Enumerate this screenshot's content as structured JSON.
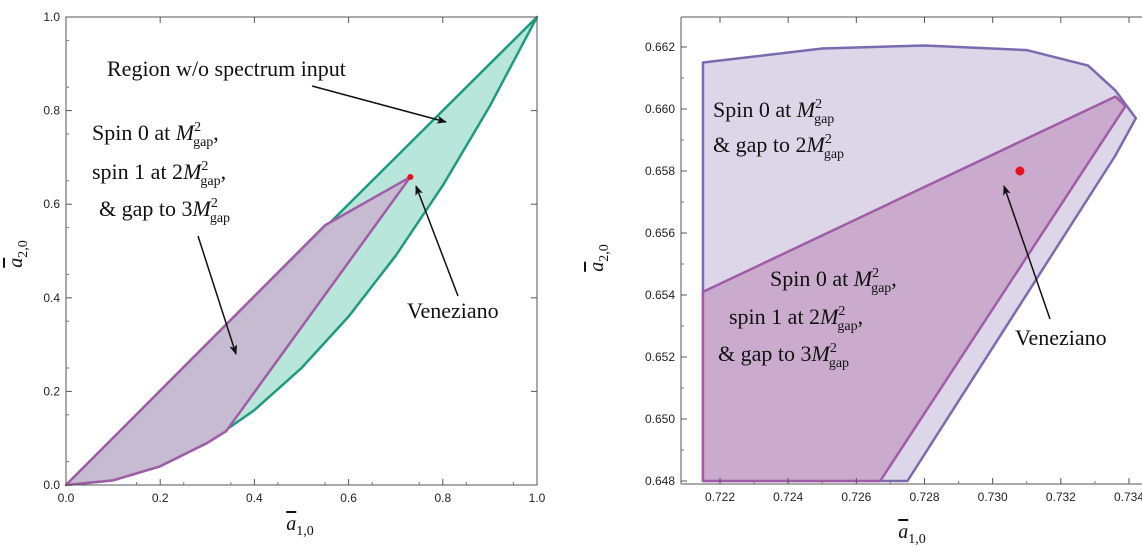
{
  "chart_data": [
    {
      "type": "area",
      "xlabel": "a̅1,0",
      "ylabel": "a̅2,0",
      "xlim": [
        0,
        1
      ],
      "ylim": [
        0,
        1
      ],
      "xticks": [
        "0.0",
        "0.2",
        "0.4",
        "0.6",
        "0.8",
        "1.0"
      ],
      "yticks": [
        "0.0",
        "0.2",
        "0.4",
        "0.6",
        "0.8",
        "1.0"
      ],
      "regions": [
        {
          "name": "Region w/o spectrum input",
          "color": "#b8e6da",
          "edge": "#1e9a82",
          "upper": [
            [
              0,
              0
            ],
            [
              0.55,
              0.55
            ],
            [
              1,
              1
            ]
          ],
          "lower": [
            [
              0,
              0
            ],
            [
              0.1,
              0.01
            ],
            [
              0.2,
              0.04
            ],
            [
              0.3,
              0.09
            ],
            [
              0.4,
              0.16
            ],
            [
              0.5,
              0.25
            ],
            [
              0.6,
              0.36
            ],
            [
              0.7,
              0.49
            ],
            [
              0.8,
              0.64
            ],
            [
              0.9,
              0.81
            ],
            [
              1,
              1
            ]
          ]
        },
        {
          "name": "Spin 0 at M²gap, spin 1 at 2M²gap, & gap to 3M²gap",
          "color": "#c9b6cf",
          "edge": "#a05ca6",
          "polygon": [
            [
              0,
              0
            ],
            [
              0.55,
              0.555
            ],
            [
              0.731,
              0.658
            ],
            [
              0.34,
              0.115
            ],
            [
              0.3,
              0.09
            ],
            [
              0.2,
              0.04
            ],
            [
              0.1,
              0.01
            ],
            [
              0,
              0
            ]
          ]
        }
      ],
      "points": [
        {
          "name": "Veneziano",
          "x": 0.731,
          "y": 0.658,
          "color": "#e8101c"
        }
      ],
      "annotations": [
        {
          "lines": [
            "Region w/o spectrum input"
          ]
        },
        {
          "lines": [
            "Spin 0 at M²gap,",
            "spin 1 at 2M²gap,",
            "& gap to 3M²gap"
          ]
        },
        {
          "lines": [
            "Veneziano"
          ]
        }
      ]
    },
    {
      "type": "area",
      "xlabel": "a̅1,0",
      "ylabel": "a̅2,0",
      "xlim": [
        0.7215,
        0.7345
      ],
      "ylim": [
        0.648,
        0.663
      ],
      "xticks": [
        "0.722",
        "0.724",
        "0.726",
        "0.728",
        "0.730",
        "0.732",
        "0.734"
      ],
      "yticks": [
        "0.648",
        "0.650",
        "0.652",
        "0.654",
        "0.656",
        "0.658",
        "0.660",
        "0.662"
      ],
      "regions": [
        {
          "name": "Spin 0 at M²gap & gap to 2M²gap",
          "color": "#dcd6e8",
          "edge": "#7a6bb0",
          "polygon": [
            [
              0.7215,
              0.6615
            ],
            [
              0.725,
              0.66195
            ],
            [
              0.728,
              0.66205
            ],
            [
              0.731,
              0.6619
            ],
            [
              0.7328,
              0.6614
            ],
            [
              0.7336,
              0.6606
            ],
            [
              0.7342,
              0.6597
            ],
            [
              0.7336,
              0.6585
            ],
            [
              0.7275,
              0.648
            ],
            [
              0.7215,
              0.648
            ]
          ]
        },
        {
          "name": "Spin 0 at M²gap, spin 1 at 2M²gap, & gap to 3M²gap",
          "color": "#c8a9cb",
          "edge": "#a05ca6",
          "polygon": [
            [
              0.7215,
              0.6541
            ],
            [
              0.7336,
              0.6604
            ],
            [
              0.7339,
              0.6601
            ],
            [
              0.7267,
              0.648
            ],
            [
              0.7215,
              0.648
            ]
          ]
        }
      ],
      "points": [
        {
          "name": "Veneziano",
          "x": 0.7308,
          "y": 0.658,
          "color": "#e8101c"
        }
      ],
      "annotations": [
        {
          "lines": [
            "Spin 0 at M²gap",
            "& gap to 2M²gap"
          ]
        },
        {
          "lines": [
            "Spin 0 at M²gap,",
            "spin 1 at 2M²gap,",
            "& gap to 3M²gap"
          ]
        },
        {
          "lines": [
            "Veneziano"
          ]
        }
      ]
    }
  ],
  "labels": {
    "left_region_text": "Region w/o spectrum input",
    "left_spin_line1": "Spin 0 at ",
    "left_spin_line2": "spin 1 at 2",
    "left_spin_line3": "& gap to 3",
    "veneziano": "Veneziano",
    "right_spin0_line1": "Spin 0 at ",
    "right_spin0_line2": "& gap to 2",
    "right_spin_line1": "Spin 0 at ",
    "right_spin_line2": "spin 1 at 2",
    "right_spin_line3": "& gap to 3",
    "M": "M",
    "gap": "gap",
    "two": "2",
    "comma": ","
  }
}
